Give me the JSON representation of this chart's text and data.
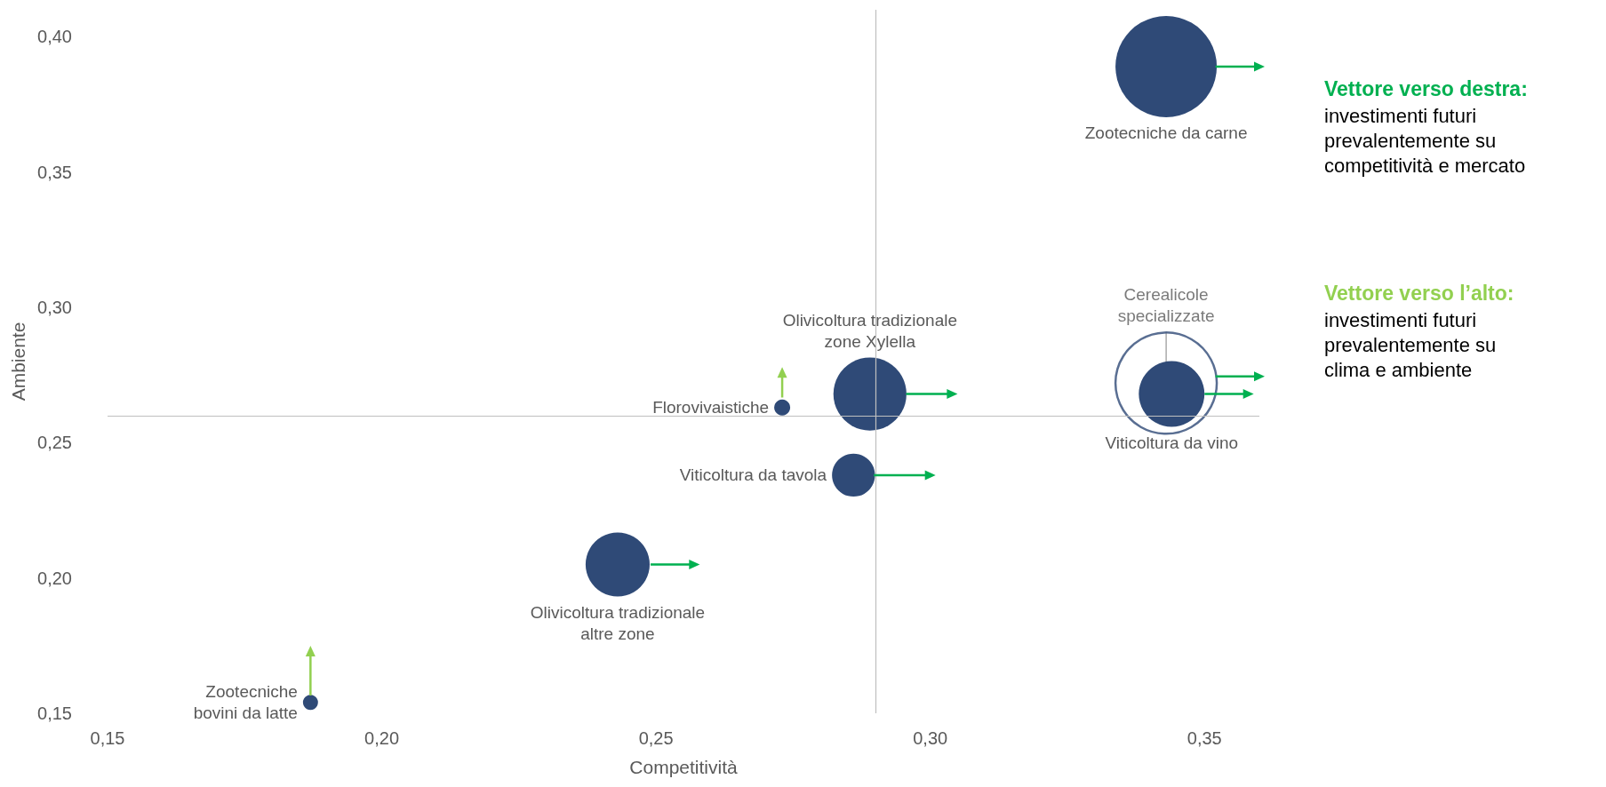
{
  "chart_data": {
    "type": "bubble",
    "xlabel": "Competitività",
    "ylabel": "Ambiente",
    "xlim": [
      0.15,
      0.36
    ],
    "ylim": [
      0.15,
      0.41
    ],
    "xticks": [
      {
        "value": 0.15,
        "label": "0,15"
      },
      {
        "value": 0.2,
        "label": "0,20"
      },
      {
        "value": 0.25,
        "label": "0,25"
      },
      {
        "value": 0.3,
        "label": "0,30"
      },
      {
        "value": 0.35,
        "label": "0,35"
      }
    ],
    "yticks": [
      {
        "value": 0.15,
        "label": "0,15"
      },
      {
        "value": 0.2,
        "label": "0,20"
      },
      {
        "value": 0.25,
        "label": "0,25"
      },
      {
        "value": 0.3,
        "label": "0,30"
      },
      {
        "value": 0.35,
        "label": "0,35"
      },
      {
        "value": 0.4,
        "label": "0,40"
      }
    ],
    "grid": false,
    "legend": "right",
    "series": [
      {
        "color": "#2f4a77",
        "x": [
          0.343,
          0.289,
          0.273,
          0.286,
          0.243,
          0.187,
          0.344
        ],
        "values": [
          0.389,
          0.268,
          0.263,
          0.238,
          0.205,
          0.154,
          0.268
        ],
        "sizes": [
          1,
          0.52,
          0.025,
          0.18,
          0.4,
          0.022,
          0.42
        ]
      },
      {
        "color": "#2f4a77",
        "x": [
          0.343
        ],
        "values": [
          0.272
        ],
        "sizes": [
          1
        ]
      },
      {
        "type": "line",
        "marker": "triangle",
        "name": "Vettore verso destra:",
        "color": "#00b050",
        "x": [
          0.352,
          0.36,
          null,
          0.35,
          0.358,
          null,
          0.2956,
          0.304,
          null,
          0.2897,
          0.3,
          null,
          0.249,
          0.257
        ],
        "values": [
          0.389,
          0.389,
          null,
          0.268,
          0.268,
          null,
          0.268,
          0.268,
          null,
          0.238,
          0.238,
          null,
          0.205,
          0.205
        ]
      },
      {
        "type": "line",
        "marker": "triangle",
        "color": "#00b050",
        "x": [
          0.352,
          0.36
        ],
        "values": [
          0.2745,
          0.2745
        ]
      },
      {
        "type": "line",
        "marker": "triangle",
        "name": "Vettore verso l’alto:",
        "color": "#92d050",
        "x": [
          0.273,
          0.273,
          null,
          0.187,
          0.187
        ],
        "values": [
          0.2667,
          0.276,
          null,
          0.1566,
          0.173
        ]
      }
    ],
    "ref_lines": [
      {
        "axis": "x",
        "value": 0.29,
        "color": "#bfbfbf"
      },
      {
        "axis": "y",
        "value": 0.26,
        "color": "#bfbfbf"
      }
    ],
    "annotations": [
      "Zootecniche da carne",
      "Olivicoltura tradizionale\nzone Xylella",
      "Florovivaistiche",
      "Viticoltura da tavola",
      "Olivicoltura tradizionale\naltre zone",
      "Zootecniche\nbovini da latte",
      "Viticoltura da vino",
      "Cerealicole\nspecializzate",
      "investimenti futuri\nprevalentemente su\ncompetitività e mercato",
      "investimenti futuri\nprevalentemente su\nclima e ambiente"
    ]
  }
}
